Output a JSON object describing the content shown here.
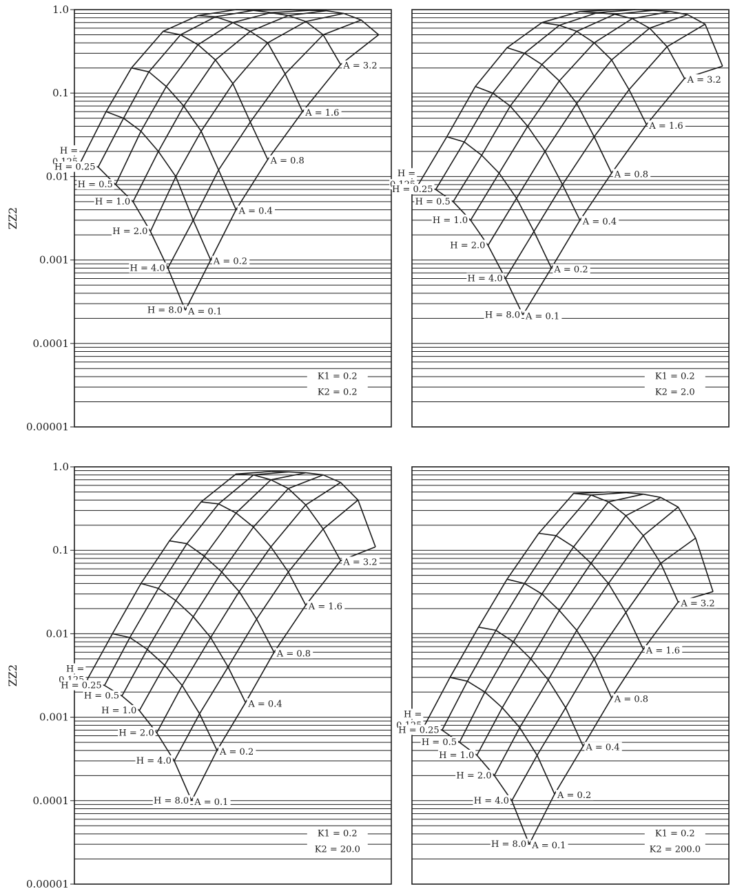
{
  "chart_data": [
    {
      "type": "line",
      "panel": "top-left",
      "ylabel": "ZZ2",
      "yscale": "log",
      "ylim": [
        1e-05,
        1.0
      ],
      "yticks": [
        "1.0",
        "0.1",
        "0.01",
        "0.001",
        "0.0001",
        "0.00001"
      ],
      "grid": "horizontal",
      "params": [
        {
          "text": "K1 = 0.2"
        },
        {
          "text": "K2 = 0.2"
        }
      ],
      "h_label_lines": [
        [
          "H =",
          "0.125"
        ],
        [
          "H = 0.25"
        ],
        [
          "H = 0.5"
        ],
        [
          "H = 1.0"
        ],
        [
          "H = 2.0"
        ],
        [
          "H = 4.0"
        ],
        [
          "H = 8.0"
        ]
      ],
      "a_labels": [
        "A = 0.1",
        "A = 0.2",
        "A = 0.4",
        "A = 0.8",
        "A = 1.6",
        "A = 3.2"
      ],
      "rows_sample_note": "",
      "series": [
        {
          "name": "H = 0.125",
          "values": [
            0.015,
            0.06,
            0.2,
            0.55,
            0.85,
            1.0,
            1.0
          ]
        },
        {
          "name": "H = 0.25",
          "values": [
            0.013,
            0.05,
            0.18,
            0.5,
            0.82,
            0.98,
            1.0
          ]
        },
        {
          "name": "H = 0.5",
          "values": [
            0.008,
            0.035,
            0.12,
            0.38,
            0.7,
            0.92,
            0.98
          ]
        },
        {
          "name": "H = 1.0",
          "values": [
            0.005,
            0.02,
            0.07,
            0.25,
            0.55,
            0.85,
            0.97
          ]
        },
        {
          "name": "H = 2.0",
          "values": [
            0.0022,
            0.01,
            0.035,
            0.13,
            0.4,
            0.72,
            0.9
          ]
        },
        {
          "name": "H = 4.0",
          "values": [
            0.0008,
            0.003,
            0.012,
            0.045,
            0.17,
            0.5,
            0.75
          ]
        },
        {
          "name": "H = 8.0",
          "values": [
            0.00025,
            0.001,
            0.004,
            0.016,
            0.06,
            0.22,
            0.5
          ]
        }
      ]
    },
    {
      "type": "line",
      "panel": "top-right",
      "ylabel": "",
      "yscale": "log",
      "ylim": [
        1e-05,
        1.0
      ],
      "yticks": [],
      "grid": "horizontal",
      "params": [
        {
          "text": "K1 = 0.2"
        },
        {
          "text": "K2 = 2.0"
        }
      ],
      "h_label_lines": [
        [
          "H =",
          "0.125"
        ],
        [
          "H = 0.25"
        ],
        [
          "H = 0.5"
        ],
        [
          "H = 1.0"
        ],
        [
          "H = 2.0"
        ],
        [
          "H = 4.0"
        ],
        [
          "H = 8.0"
        ]
      ],
      "a_labels": [
        "A = 0.1",
        "A = 0.2",
        "A = 0.4",
        "A = 0.8",
        "A = 1.6",
        "A = 3.2"
      ],
      "series": [
        {
          "name": "H = 0.125",
          "values": [
            0.008,
            0.03,
            0.12,
            0.35,
            0.7,
            0.95,
            1.0
          ]
        },
        {
          "name": "H = 0.25",
          "values": [
            0.007,
            0.026,
            0.1,
            0.3,
            0.65,
            0.92,
            1.0
          ]
        },
        {
          "name": "H = 0.5",
          "values": [
            0.005,
            0.018,
            0.07,
            0.22,
            0.55,
            0.88,
            0.98
          ]
        },
        {
          "name": "H = 1.0",
          "values": [
            0.003,
            0.011,
            0.04,
            0.14,
            0.4,
            0.78,
            0.95
          ]
        },
        {
          "name": "H = 2.0",
          "values": [
            0.0015,
            0.0055,
            0.02,
            0.075,
            0.25,
            0.6,
            0.87
          ]
        },
        {
          "name": "H = 4.0",
          "values": [
            0.0006,
            0.0022,
            0.008,
            0.03,
            0.11,
            0.36,
            0.67
          ]
        },
        {
          "name": "H = 8.0",
          "values": [
            0.00022,
            0.0008,
            0.003,
            0.011,
            0.042,
            0.15,
            0.21
          ]
        }
      ]
    },
    {
      "type": "line",
      "panel": "bottom-left",
      "ylabel": "ZZ2",
      "yscale": "log",
      "ylim": [
        1e-05,
        1.0
      ],
      "yticks": [
        "1.0",
        "0.1",
        "0.01",
        "0.001",
        "0.0001",
        "0.00001"
      ],
      "grid": "horizontal",
      "params": [
        {
          "text": "K1 = 0.2"
        },
        {
          "text": "K2 = 20.0"
        }
      ],
      "h_label_lines": [
        [
          "H =",
          "0.125"
        ],
        [
          "H = 0.25"
        ],
        [
          "H = 0.5"
        ],
        [
          "H = 1.0"
        ],
        [
          "H = 2.0"
        ],
        [
          "H = 4.0"
        ],
        [
          "H = 8.0"
        ]
      ],
      "a_labels": [
        "A = 0.1",
        "A = 0.2",
        "A = 0.4",
        "A = 0.8",
        "A = 1.6",
        "A = 3.2"
      ],
      "series": [
        {
          "name": "H = 0.125",
          "values": [
            0.0028,
            0.01,
            0.04,
            0.13,
            0.38,
            0.82,
            0.88
          ]
        },
        {
          "name": "H = 0.25",
          "values": [
            0.0024,
            0.009,
            0.035,
            0.12,
            0.36,
            0.8,
            0.87
          ]
        },
        {
          "name": "H = 0.5",
          "values": [
            0.0018,
            0.0065,
            0.025,
            0.085,
            0.28,
            0.7,
            0.85
          ]
        },
        {
          "name": "H = 1.0",
          "values": [
            0.0012,
            0.0042,
            0.016,
            0.055,
            0.19,
            0.55,
            0.8
          ]
        },
        {
          "name": "H = 2.0",
          "values": [
            0.00065,
            0.0024,
            0.009,
            0.032,
            0.11,
            0.35,
            0.65
          ]
        },
        {
          "name": "H = 4.0",
          "values": [
            0.0003,
            0.0011,
            0.004,
            0.015,
            0.055,
            0.18,
            0.4
          ]
        },
        {
          "name": "H = 8.0",
          "values": [
            0.0001,
            0.0004,
            0.0015,
            0.006,
            0.022,
            0.075,
            0.11
          ]
        }
      ]
    },
    {
      "type": "line",
      "panel": "bottom-right",
      "ylabel": "",
      "yscale": "log",
      "ylim": [
        1e-05,
        1.0
      ],
      "yticks": [],
      "grid": "horizontal",
      "params": [
        {
          "text": "K1 = 0.2"
        },
        {
          "text": "K2 = 200.0"
        }
      ],
      "h_label_lines": [
        [
          "H =",
          "0.125"
        ],
        [
          "H = 0.25"
        ],
        [
          "H = 0.5"
        ],
        [
          "H = 1.0"
        ],
        [
          "H = 2.0"
        ],
        [
          "H = 4.0"
        ],
        [
          "H = 8.0"
        ]
      ],
      "a_labels": [
        "A = 0.1",
        "A = 0.2",
        "A = 0.4",
        "A = 0.8",
        "A = 1.6",
        "A = 3.2"
      ],
      "series": [
        {
          "name": "H = 0.125",
          "values": [
            0.0008,
            0.003,
            0.012,
            0.045,
            0.16,
            0.48,
            0.5
          ]
        },
        {
          "name": "H = 0.25",
          "values": [
            0.0007,
            0.0027,
            0.011,
            0.04,
            0.15,
            0.46,
            0.49
          ]
        },
        {
          "name": "H = 0.5",
          "values": [
            0.0005,
            0.002,
            0.008,
            0.03,
            0.11,
            0.38,
            0.47
          ]
        },
        {
          "name": "H = 1.0",
          "values": [
            0.00035,
            0.0013,
            0.005,
            0.019,
            0.07,
            0.26,
            0.43
          ]
        },
        {
          "name": "H = 2.0",
          "values": [
            0.0002,
            0.00075,
            0.0028,
            0.011,
            0.04,
            0.15,
            0.33
          ]
        },
        {
          "name": "H = 4.0",
          "values": [
            0.0001,
            0.00035,
            0.0013,
            0.005,
            0.018,
            0.07,
            0.14
          ]
        },
        {
          "name": "H = 8.0",
          "values": [
            3e-05,
            0.00012,
            0.00045,
            0.0017,
            0.0065,
            0.024,
            0.032
          ]
        }
      ]
    }
  ]
}
